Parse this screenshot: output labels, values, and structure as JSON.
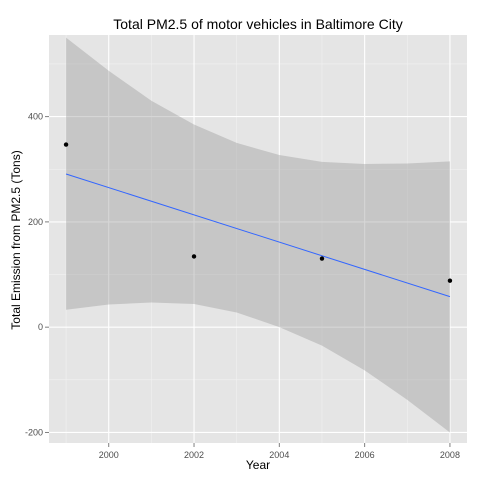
{
  "chart_data": {
    "type": "scatter",
    "title": "Total PM2.5 of motor vehicles in Baltimore City",
    "xlabel": "Year",
    "ylabel": "Total Emission from PM2.5 (Tons)",
    "xlim": [
      1998.6,
      2008.4
    ],
    "ylim": [
      -220,
      555
    ],
    "x_ticks": [
      2000,
      2002,
      2004,
      2006,
      2008
    ],
    "y_ticks": [
      -200,
      0,
      200,
      400
    ],
    "grid": true,
    "points": [
      {
        "x": 1999,
        "y": 346.8
      },
      {
        "x": 2002,
        "y": 134.3
      },
      {
        "x": 2005,
        "y": 130.4
      },
      {
        "x": 2008,
        "y": 88.3
      }
    ],
    "trend_line": {
      "x": [
        1999,
        2008
      ],
      "y": [
        291,
        58
      ],
      "color": "#3366FF"
    },
    "confidence_band": {
      "x": [
        1999,
        2000,
        2001,
        2002,
        2003,
        2004,
        2005,
        2006,
        2007,
        2008
      ],
      "upper": [
        550,
        487,
        430,
        385,
        350,
        327,
        314,
        310,
        311,
        315
      ],
      "lower": [
        33,
        43,
        47,
        44,
        28,
        0,
        -35,
        -82,
        -138,
        -200
      ]
    },
    "colors": {
      "panel": "#E5E5E5",
      "grid": "#FFFFFF",
      "band": "#999999",
      "point": "#000000"
    }
  }
}
